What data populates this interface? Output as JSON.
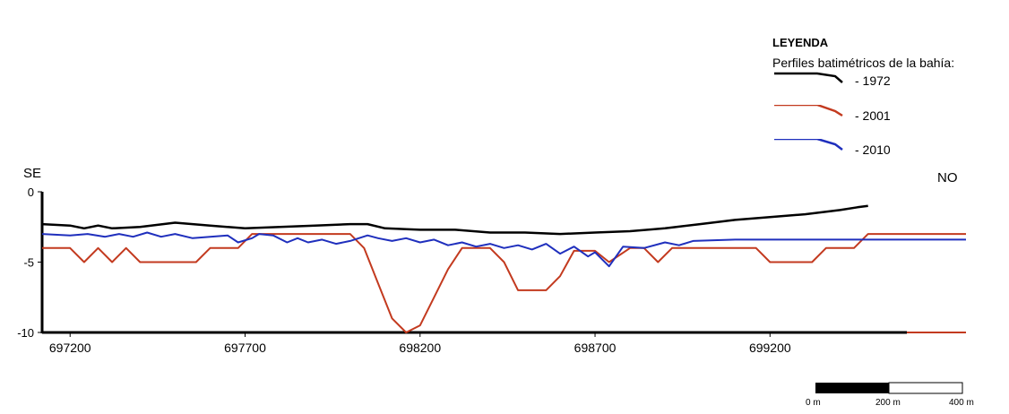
{
  "chart_data": {
    "type": "line",
    "title": "",
    "xlabel": "",
    "ylabel": "",
    "xlim": [
      697120,
      699760
    ],
    "ylim": [
      -10,
      0
    ],
    "x_ticks": [
      697200,
      697700,
      698200,
      698700,
      699200
    ],
    "y_ticks": [
      0,
      -5,
      -10
    ],
    "y_tick_labels": [
      "0",
      "-5",
      "-10"
    ],
    "left_label": "SE",
    "right_label": "NO",
    "legend": {
      "title": "LEYENDA",
      "subtitle": "Perfiles batimétricos de la bahía:",
      "items": [
        "- 1972",
        "- 2001",
        "- 2010"
      ]
    },
    "scale_bar": {
      "labels": [
        "0 m",
        "200 m",
        "400 m"
      ]
    },
    "series": [
      {
        "name": "1972",
        "color": "#000000",
        "points": [
          [
            697120,
            -2.3
          ],
          [
            697200,
            -2.4
          ],
          [
            697240,
            -2.6
          ],
          [
            697280,
            -2.4
          ],
          [
            697320,
            -2.6
          ],
          [
            697400,
            -2.5
          ],
          [
            697500,
            -2.2
          ],
          [
            697600,
            -2.4
          ],
          [
            697700,
            -2.6
          ],
          [
            697800,
            -2.5
          ],
          [
            697900,
            -2.4
          ],
          [
            698000,
            -2.3
          ],
          [
            698050,
            -2.3
          ],
          [
            698100,
            -2.6
          ],
          [
            698200,
            -2.7
          ],
          [
            698300,
            -2.7
          ],
          [
            698400,
            -2.9
          ],
          [
            698500,
            -2.9
          ],
          [
            698600,
            -3.0
          ],
          [
            698700,
            -2.9
          ],
          [
            698800,
            -2.8
          ],
          [
            698900,
            -2.6
          ],
          [
            699000,
            -2.3
          ],
          [
            699100,
            -2.0
          ],
          [
            699200,
            -1.8
          ],
          [
            699300,
            -1.6
          ],
          [
            699400,
            -1.3
          ],
          [
            699450,
            -1.1
          ],
          [
            699480,
            -1.0
          ]
        ]
      },
      {
        "name": "2001",
        "color": "#c33a1f",
        "points": [
          [
            697120,
            -4.0
          ],
          [
            697200,
            -4.0
          ],
          [
            697240,
            -5.0
          ],
          [
            697280,
            -4.0
          ],
          [
            697320,
            -5.0
          ],
          [
            697360,
            -4.0
          ],
          [
            697400,
            -5.0
          ],
          [
            697560,
            -5.0
          ],
          [
            697600,
            -4.0
          ],
          [
            697680,
            -4.0
          ],
          [
            697720,
            -3.0
          ],
          [
            698000,
            -3.0
          ],
          [
            698040,
            -4.0
          ],
          [
            698080,
            -6.5
          ],
          [
            698120,
            -9.0
          ],
          [
            698160,
            -10.0
          ],
          [
            698200,
            -9.5
          ],
          [
            698240,
            -7.5
          ],
          [
            698280,
            -5.5
          ],
          [
            698320,
            -4.0
          ],
          [
            698400,
            -4.0
          ],
          [
            698440,
            -5.0
          ],
          [
            698480,
            -7.0
          ],
          [
            698560,
            -7.0
          ],
          [
            698600,
            -6.0
          ],
          [
            698640,
            -4.2
          ],
          [
            698700,
            -4.2
          ],
          [
            698740,
            -5.0
          ],
          [
            698800,
            -4.0
          ],
          [
            698840,
            -4.0
          ],
          [
            698880,
            -5.0
          ],
          [
            698920,
            -4.0
          ],
          [
            699160,
            -4.0
          ],
          [
            699200,
            -5.0
          ],
          [
            699320,
            -5.0
          ],
          [
            699360,
            -4.0
          ],
          [
            699440,
            -4.0
          ],
          [
            699480,
            -3.0
          ],
          [
            699760,
            -3.0
          ]
        ]
      },
      {
        "name": "2010",
        "color": "#1f2fbd",
        "points": [
          [
            697120,
            -3.0
          ],
          [
            697200,
            -3.1
          ],
          [
            697250,
            -3.0
          ],
          [
            697300,
            -3.2
          ],
          [
            697340,
            -3.0
          ],
          [
            697380,
            -3.2
          ],
          [
            697420,
            -2.9
          ],
          [
            697460,
            -3.2
          ],
          [
            697500,
            -3.0
          ],
          [
            697550,
            -3.3
          ],
          [
            697600,
            -3.2
          ],
          [
            697650,
            -3.1
          ],
          [
            697680,
            -3.6
          ],
          [
            697720,
            -3.3
          ],
          [
            697740,
            -3.0
          ],
          [
            697780,
            -3.1
          ],
          [
            697820,
            -3.6
          ],
          [
            697850,
            -3.3
          ],
          [
            697880,
            -3.6
          ],
          [
            697920,
            -3.4
          ],
          [
            697960,
            -3.7
          ],
          [
            698000,
            -3.5
          ],
          [
            698050,
            -3.1
          ],
          [
            698080,
            -3.3
          ],
          [
            698120,
            -3.5
          ],
          [
            698160,
            -3.3
          ],
          [
            698200,
            -3.6
          ],
          [
            698240,
            -3.4
          ],
          [
            698280,
            -3.8
          ],
          [
            698320,
            -3.6
          ],
          [
            698360,
            -3.9
          ],
          [
            698400,
            -3.7
          ],
          [
            698440,
            -4.0
          ],
          [
            698480,
            -3.8
          ],
          [
            698520,
            -4.1
          ],
          [
            698560,
            -3.7
          ],
          [
            698600,
            -4.4
          ],
          [
            698640,
            -3.9
          ],
          [
            698680,
            -4.6
          ],
          [
            698700,
            -4.3
          ],
          [
            698740,
            -5.3
          ],
          [
            698780,
            -3.9
          ],
          [
            698840,
            -4.0
          ],
          [
            698900,
            -3.6
          ],
          [
            698940,
            -3.8
          ],
          [
            698980,
            -3.5
          ],
          [
            699100,
            -3.4
          ],
          [
            699760,
            -3.4
          ]
        ]
      }
    ]
  }
}
